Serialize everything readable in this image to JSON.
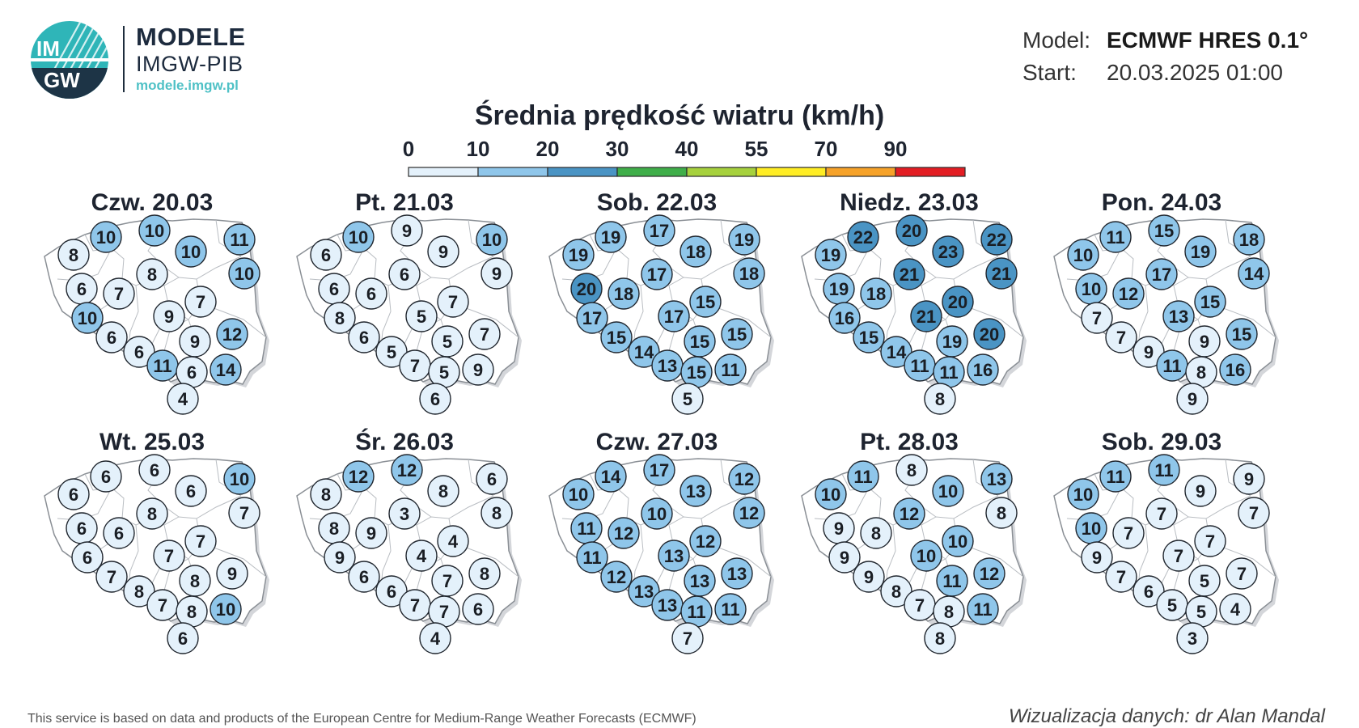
{
  "header": {
    "logo_text_top": "IM",
    "logo_text_bottom": "GW",
    "brand_title": "MODELE",
    "brand_subtitle": "IMGW-PIB",
    "brand_url": "modele.imgw.pl",
    "model_label": "Model:",
    "model_value": "ECMWF HRES 0.1°",
    "start_label": "Start:",
    "start_value": "20.03.2025 01:00"
  },
  "legend": {
    "title": "Średnia prędkość wiatru (km/h)",
    "thresholds": [
      "0",
      "10",
      "20",
      "30",
      "40",
      "55",
      "70",
      "90"
    ],
    "colors": [
      "#e4f1fb",
      "#8fc6ea",
      "#4a94c4",
      "#3fae49",
      "#a6d13d",
      "#ffed24",
      "#f6a229",
      "#e31d23"
    ]
  },
  "station_colors": {
    "lt10": "#e4f1fb",
    "10to20": "#8fc6ea",
    "20to30": "#4a94c4"
  },
  "maps": [
    {
      "day": "Czw. 20.03",
      "values": [
        10,
        10,
        10,
        11,
        8,
        10,
        8,
        6,
        7,
        7,
        9,
        10,
        12,
        6,
        9,
        6,
        11,
        6,
        14,
        4
      ]
    },
    {
      "day": "Pt. 21.03",
      "values": [
        10,
        9,
        9,
        10,
        6,
        9,
        6,
        6,
        6,
        7,
        5,
        8,
        7,
        6,
        5,
        5,
        7,
        5,
        9,
        6
      ]
    },
    {
      "day": "Sob. 22.03",
      "values": [
        19,
        17,
        18,
        19,
        19,
        18,
        17,
        20,
        18,
        15,
        17,
        17,
        15,
        15,
        15,
        14,
        13,
        15,
        11,
        5
      ]
    },
    {
      "day": "Niedz. 23.03",
      "values": [
        22,
        20,
        23,
        22,
        19,
        21,
        21,
        19,
        18,
        20,
        21,
        16,
        20,
        15,
        19,
        14,
        11,
        11,
        16,
        8
      ]
    },
    {
      "day": "Pon. 24.03",
      "values": [
        11,
        15,
        19,
        18,
        10,
        14,
        17,
        10,
        12,
        15,
        13,
        7,
        15,
        7,
        9,
        9,
        11,
        8,
        16,
        9
      ]
    },
    {
      "day": "Wt. 25.03",
      "values": [
        6,
        6,
        6,
        10,
        6,
        7,
        8,
        6,
        6,
        7,
        7,
        6,
        9,
        7,
        8,
        8,
        7,
        8,
        10,
        6
      ]
    },
    {
      "day": "Śr. 26.03",
      "values": [
        12,
        12,
        8,
        6,
        8,
        8,
        3,
        8,
        9,
        4,
        4,
        9,
        8,
        6,
        7,
        6,
        7,
        7,
        6,
        4
      ]
    },
    {
      "day": "Czw. 27.03",
      "values": [
        14,
        17,
        13,
        12,
        10,
        12,
        10,
        11,
        12,
        12,
        13,
        11,
        13,
        12,
        13,
        13,
        13,
        11,
        11,
        7
      ]
    },
    {
      "day": "Pt. 28.03",
      "values": [
        11,
        8,
        10,
        13,
        10,
        8,
        12,
        9,
        8,
        10,
        10,
        9,
        12,
        9,
        11,
        8,
        7,
        8,
        11,
        8
      ]
    },
    {
      "day": "Sob. 29.03",
      "values": [
        11,
        11,
        9,
        9,
        10,
        7,
        7,
        10,
        7,
        7,
        7,
        9,
        7,
        7,
        5,
        6,
        5,
        5,
        4,
        3
      ]
    }
  ],
  "footer": {
    "left": "This service is based on data and products of the European Centre for Medium-Range Weather Forecasts (ECMWF)",
    "right": "Wizualizacja danych: dr Alan Mandal"
  }
}
